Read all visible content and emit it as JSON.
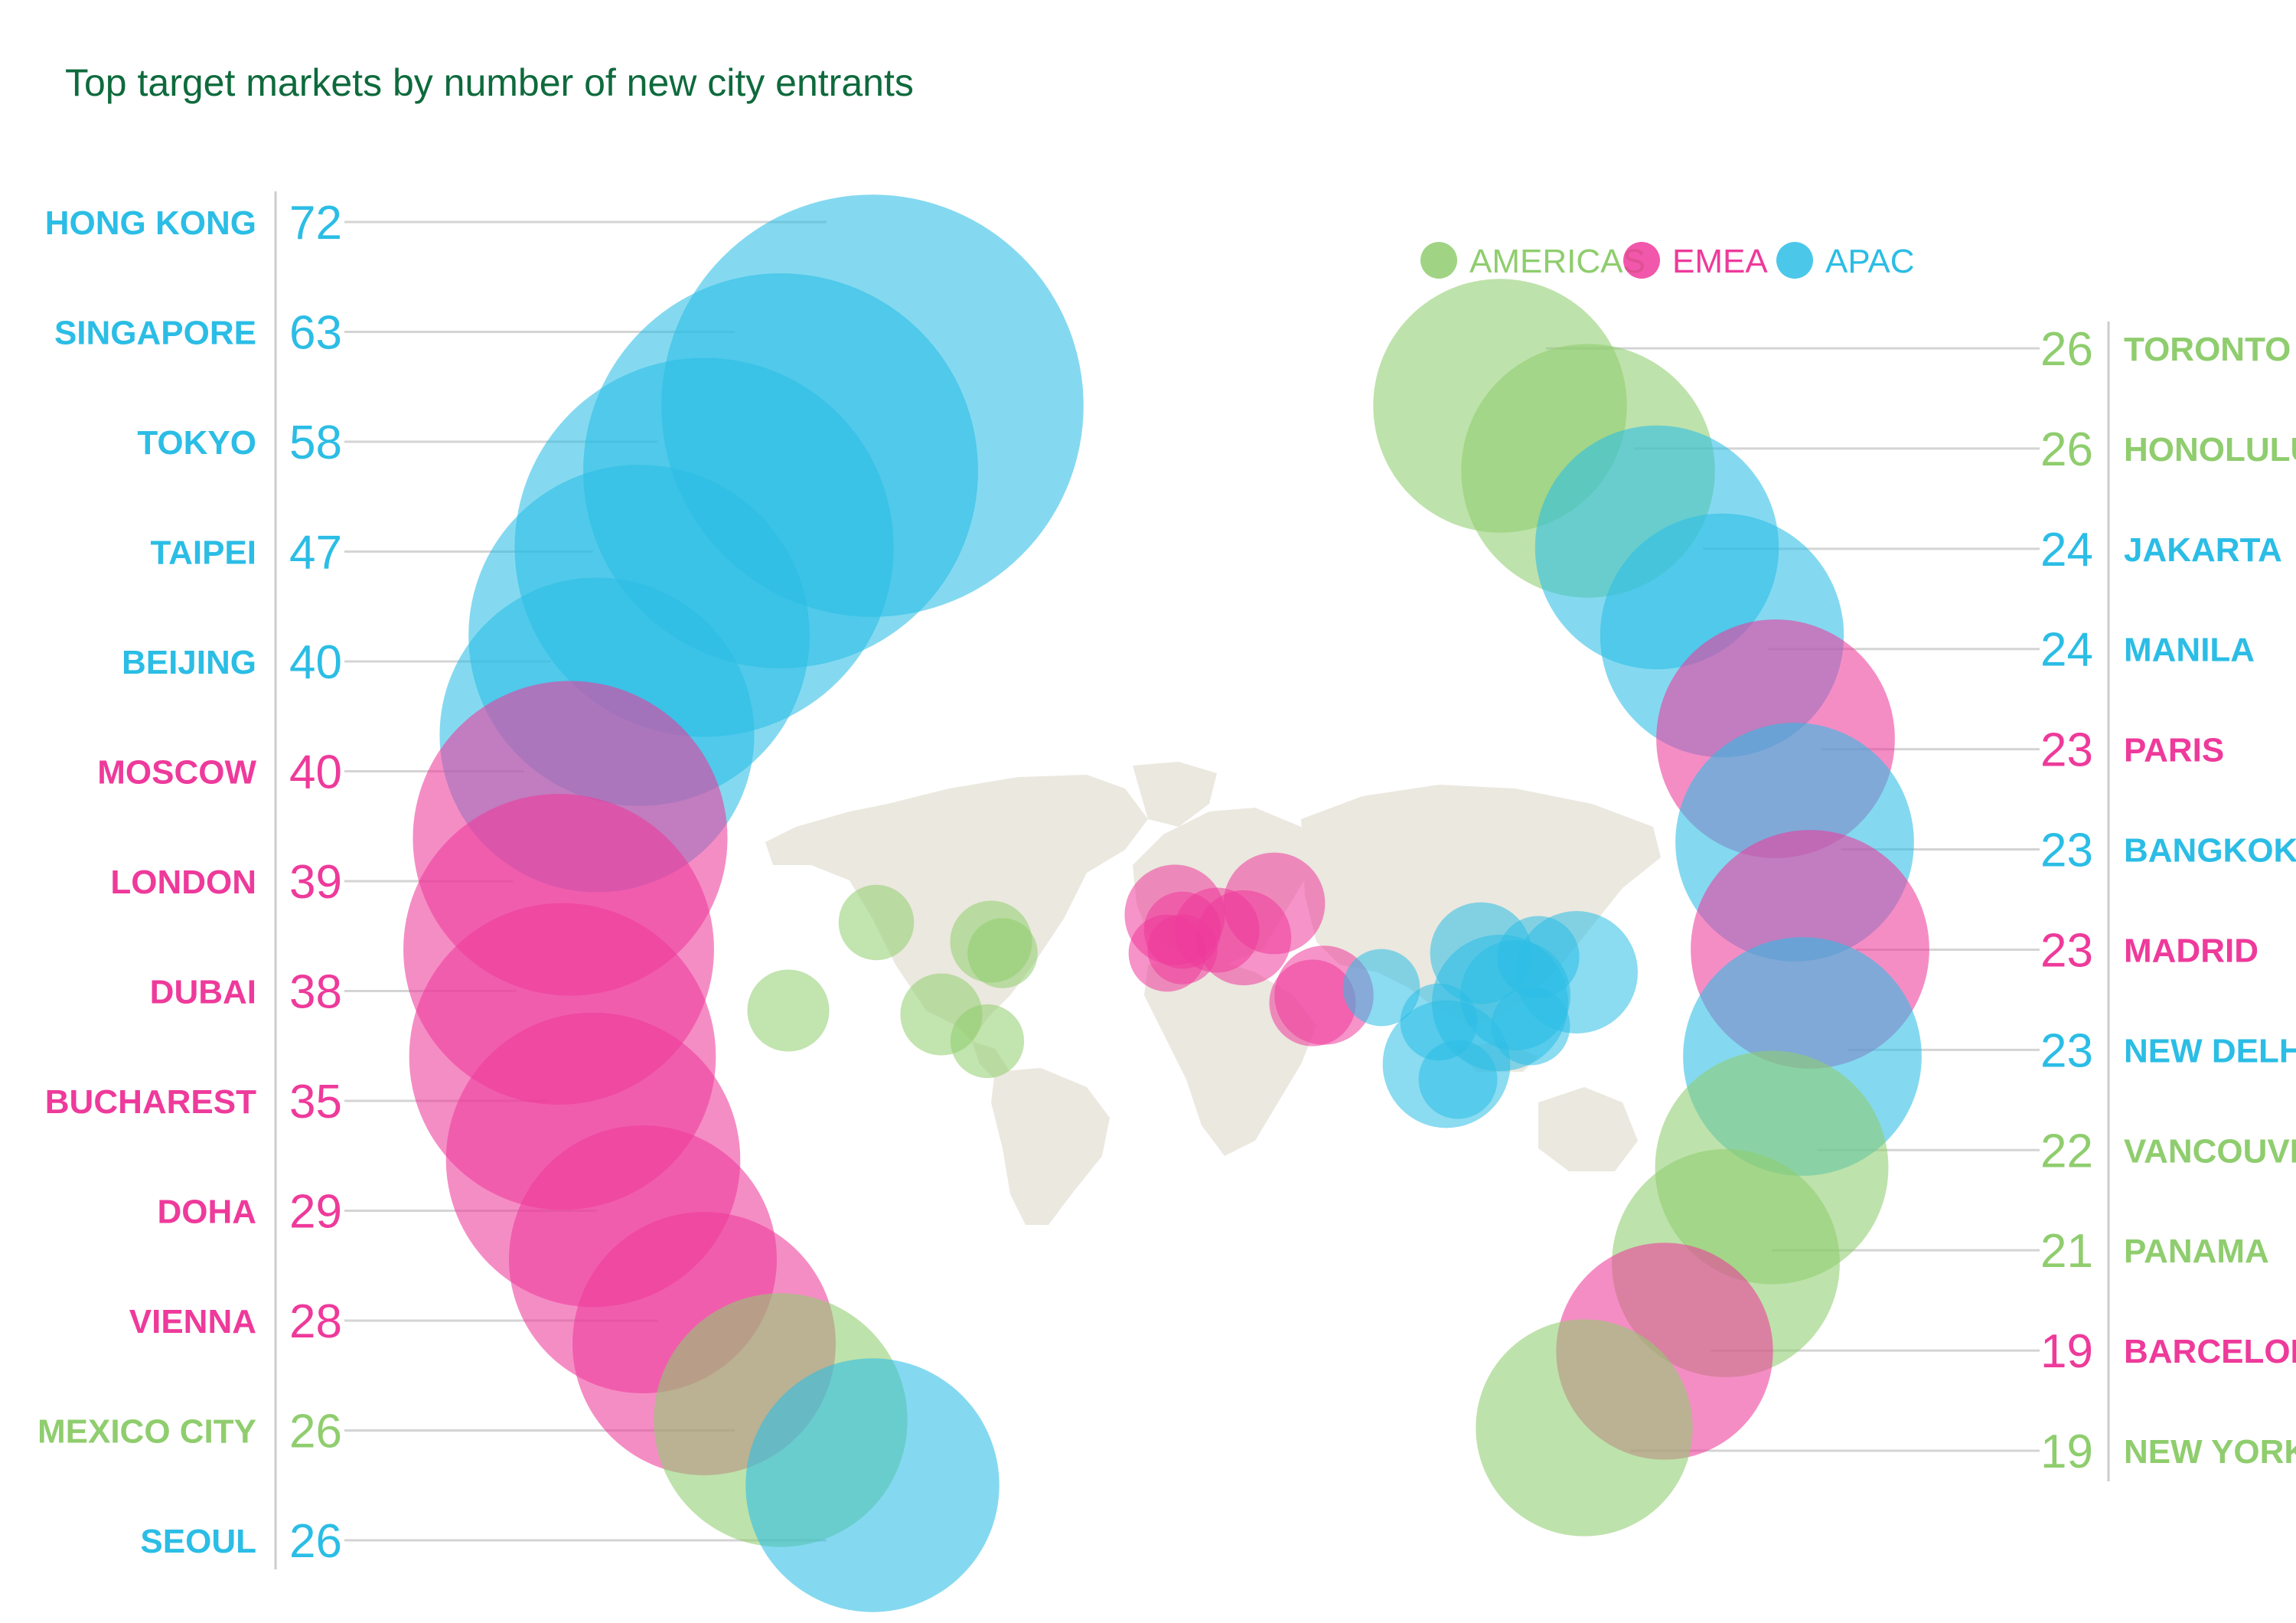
{
  "title": "Top target markets by number of new city entrants",
  "colors": {
    "AMERICAS": "#8fcd6e",
    "EMEA": "#ee3a9b",
    "APAC": "#2bbde5",
    "guide": "#d4d4d4",
    "map": "#ebe8df",
    "title": "#0e6a3c"
  },
  "legend": [
    {
      "label": "AMERICAS",
      "region": "AMERICAS"
    },
    {
      "label": "EMEA",
      "region": "EMEA"
    },
    {
      "label": "APAC",
      "region": "APAC"
    }
  ],
  "chart_data": {
    "type": "bubble",
    "title": "Top target markets by number of new city entrants",
    "series": [
      {
        "name": "AMERICAS"
      },
      {
        "name": "EMEA"
      },
      {
        "name": "APAC"
      }
    ],
    "left_column": [
      {
        "city": "HONG KONG",
        "value": 72,
        "region": "APAC"
      },
      {
        "city": "SINGAPORE",
        "value": 63,
        "region": "APAC"
      },
      {
        "city": "TOKYO",
        "value": 58,
        "region": "APAC"
      },
      {
        "city": "TAIPEI",
        "value": 47,
        "region": "APAC"
      },
      {
        "city": "BEIJING",
        "value": 40,
        "region": "APAC"
      },
      {
        "city": "MOSCOW",
        "value": 40,
        "region": "EMEA"
      },
      {
        "city": "LONDON",
        "value": 39,
        "region": "EMEA"
      },
      {
        "city": "DUBAI",
        "value": 38,
        "region": "EMEA"
      },
      {
        "city": "BUCHAREST",
        "value": 35,
        "region": "EMEA"
      },
      {
        "city": "DOHA",
        "value": 29,
        "region": "EMEA"
      },
      {
        "city": "VIENNA",
        "value": 28,
        "region": "EMEA"
      },
      {
        "city": "MEXICO CITY",
        "value": 26,
        "region": "AMERICAS"
      },
      {
        "city": "SEOUL",
        "value": 26,
        "region": "APAC"
      }
    ],
    "right_column": [
      {
        "city": "TORONTO",
        "value": 26,
        "region": "AMERICAS"
      },
      {
        "city": "HONOLULU",
        "value": 26,
        "region": "AMERICAS"
      },
      {
        "city": "JAKARTA",
        "value": 24,
        "region": "APAC"
      },
      {
        "city": "MANILA",
        "value": 24,
        "region": "APAC"
      },
      {
        "city": "PARIS",
        "value": 23,
        "region": "EMEA"
      },
      {
        "city": "BANGKOK",
        "value": 23,
        "region": "APAC"
      },
      {
        "city": "MADRID",
        "value": 23,
        "region": "EMEA"
      },
      {
        "city": "NEW DELHI",
        "value": 23,
        "region": "APAC"
      },
      {
        "city": "VANCOUVER",
        "value": 22,
        "region": "AMERICAS"
      },
      {
        "city": "PANAMA",
        "value": 21,
        "region": "AMERICAS"
      },
      {
        "city": "BARCELONA",
        "value": 19,
        "region": "EMEA"
      },
      {
        "city": "NEW YORK",
        "value": 19,
        "region": "AMERICAS"
      }
    ]
  }
}
